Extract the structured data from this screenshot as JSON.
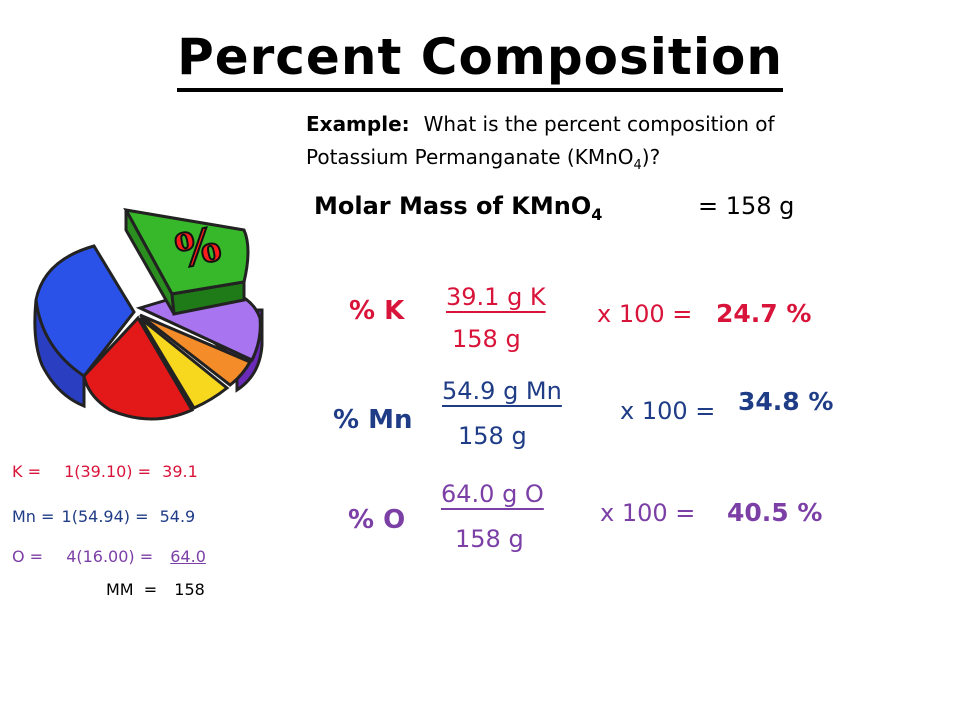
{
  "title": "Percent Composition",
  "example": {
    "label": "Example:",
    "line1": "What is the percent composition of",
    "line2_before": "Potassium Permanganate (KMnO",
    "line2_sub": "4",
    "line2_after": ")?"
  },
  "molar_mass": {
    "label": "Molar Mass of KMnO",
    "sub": "4",
    "value": "= 158 g"
  },
  "rows": [
    {
      "label": "% K",
      "numerator": "39.1 g K",
      "denominator": "158 g",
      "times": "x 100 =",
      "result": "24.7 %"
    },
    {
      "label": "% Mn",
      "numerator": "54.9 g Mn",
      "denominator": "158 g",
      "times": "x 100 =",
      "result": "34.8 %"
    },
    {
      "label": "% O",
      "numerator": "64.0 g O",
      "denominator": "158 g",
      "times": "x 100 =",
      "result": "40.5 %"
    }
  ],
  "calc": [
    {
      "element": "K =",
      "expr": "1(39.10) =",
      "value": "39.1"
    },
    {
      "element": "Mn =",
      "expr": "1(54.94) =",
      "value": "54.9"
    },
    {
      "element": "O =",
      "expr": "4(16.00) =",
      "value": "64.0"
    }
  ],
  "total": {
    "label": "MM  =",
    "value": "158"
  },
  "illustration": {
    "symbol": "%",
    "colors": {
      "red": "#d9143a",
      "navy": "#1f3c86",
      "purple": "#7b3fa6"
    }
  }
}
